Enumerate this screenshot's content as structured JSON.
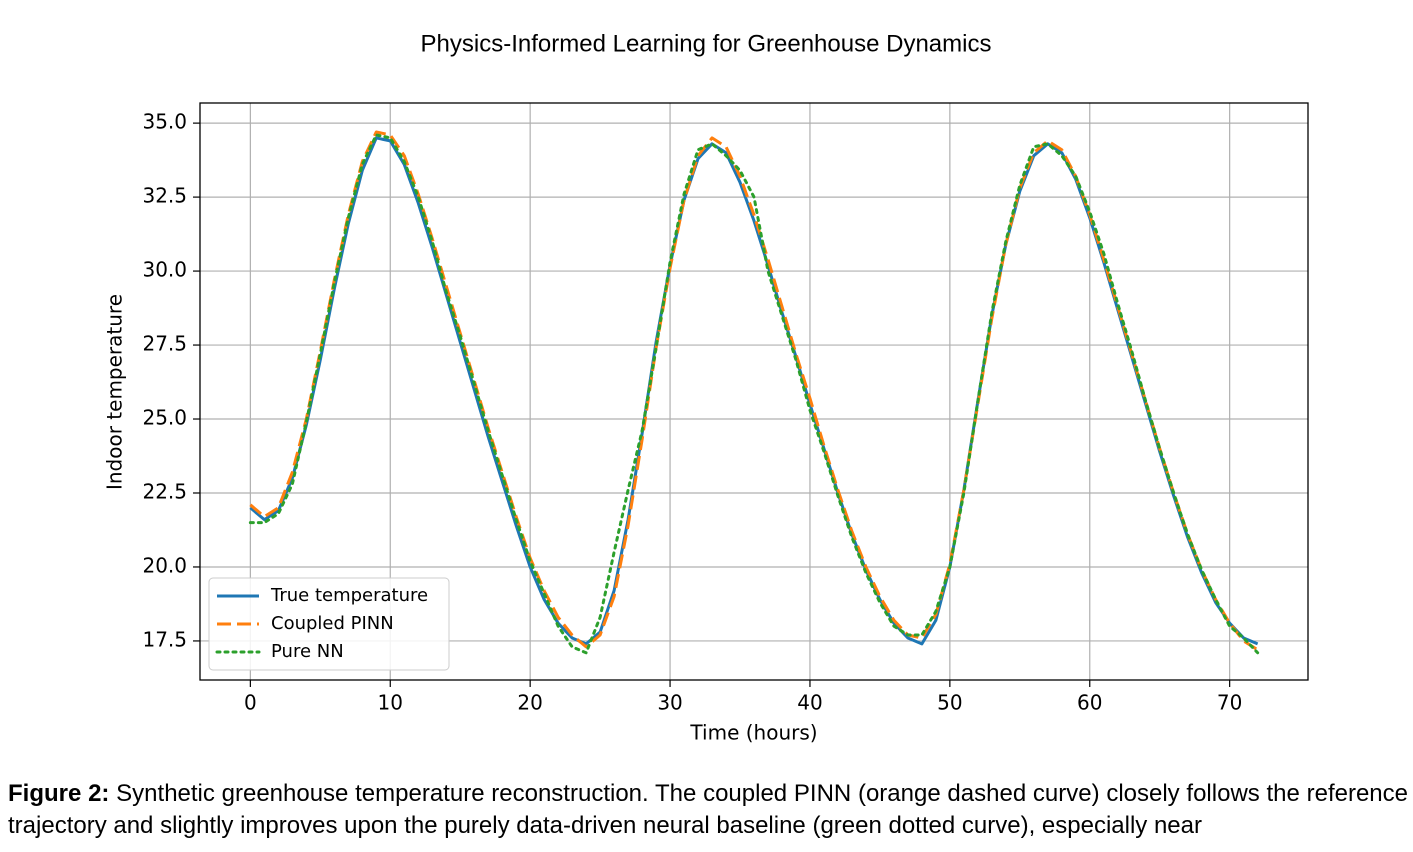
{
  "chart_data": {
    "type": "line",
    "title": "Physics-Informed Learning for Greenhouse Dynamics",
    "xlabel": "Time (hours)",
    "ylabel": "Indoor temperature",
    "x": [
      0,
      1,
      2,
      3,
      4,
      5,
      6,
      7,
      8,
      9,
      10,
      11,
      12,
      13,
      14,
      15,
      16,
      17,
      18,
      19,
      20,
      21,
      22,
      23,
      24,
      25,
      26,
      27,
      28,
      29,
      30,
      31,
      32,
      33,
      34,
      35,
      36,
      37,
      38,
      39,
      40,
      41,
      42,
      43,
      44,
      45,
      46,
      47,
      48,
      49,
      50,
      51,
      52,
      53,
      54,
      55,
      56,
      57,
      58,
      59,
      60,
      61,
      62,
      63,
      64,
      65,
      66,
      67,
      68,
      69,
      70,
      71,
      72
    ],
    "series": [
      {
        "name": "True temperature",
        "color": "#1f77b4",
        "linestyle": "solid",
        "values": [
          22.0,
          21.6,
          21.9,
          23.0,
          24.8,
          27.0,
          29.4,
          31.6,
          33.4,
          34.5,
          34.4,
          33.6,
          32.3,
          30.8,
          29.2,
          27.6,
          26.0,
          24.4,
          22.9,
          21.4,
          20.0,
          18.9,
          18.1,
          17.6,
          17.4,
          17.8,
          19.2,
          21.6,
          24.5,
          27.6,
          30.2,
          32.4,
          33.8,
          34.3,
          34.0,
          33.0,
          31.7,
          30.2,
          28.6,
          27.1,
          25.5,
          24.0,
          22.5,
          21.1,
          19.9,
          18.9,
          18.1,
          17.6,
          17.4,
          18.2,
          20.0,
          22.6,
          25.6,
          28.5,
          30.9,
          32.7,
          33.9,
          34.3,
          34.0,
          33.1,
          31.8,
          30.3,
          28.7,
          27.1,
          25.5,
          23.9,
          22.4,
          21.0,
          19.8,
          18.8,
          18.1,
          17.6,
          17.4
        ]
      },
      {
        "name": "Coupled PINN",
        "color": "#ff7f0e",
        "linestyle": "dashed",
        "values": [
          22.1,
          21.7,
          22.0,
          23.2,
          25.0,
          27.3,
          29.7,
          31.9,
          33.7,
          34.7,
          34.6,
          33.9,
          32.6,
          31.1,
          29.5,
          27.9,
          26.3,
          24.7,
          23.2,
          21.7,
          20.3,
          19.2,
          18.3,
          17.7,
          17.3,
          17.7,
          19.0,
          21.4,
          24.3,
          27.4,
          30.1,
          32.4,
          33.9,
          34.5,
          34.2,
          33.2,
          31.9,
          30.4,
          28.8,
          27.2,
          25.7,
          24.1,
          22.6,
          21.2,
          20.0,
          19.0,
          18.2,
          17.7,
          17.6,
          18.4,
          20.1,
          22.6,
          25.5,
          28.4,
          30.9,
          32.8,
          34.0,
          34.4,
          34.1,
          33.2,
          31.9,
          30.4,
          28.8,
          27.2,
          25.6,
          24.0,
          22.5,
          21.1,
          19.9,
          18.9,
          18.1,
          17.5,
          17.2
        ]
      },
      {
        "name": "Pure NN",
        "color": "#2ca02c",
        "linestyle": "dotted",
        "values": [
          21.5,
          21.5,
          21.8,
          22.8,
          24.9,
          27.2,
          29.6,
          31.8,
          33.6,
          34.6,
          34.5,
          33.7,
          32.5,
          31.0,
          29.3,
          27.8,
          26.2,
          24.6,
          23.1,
          21.6,
          20.2,
          19.1,
          18.0,
          17.3,
          17.1,
          18.3,
          20.5,
          22.6,
          24.6,
          27.4,
          30.3,
          32.6,
          34.1,
          34.3,
          33.9,
          33.4,
          32.5,
          30.0,
          28.5,
          27.0,
          25.3,
          23.9,
          22.4,
          21.0,
          19.8,
          18.8,
          18.0,
          17.7,
          17.7,
          18.5,
          20.0,
          22.5,
          25.6,
          28.6,
          31.0,
          32.9,
          34.2,
          34.3,
          33.9,
          33.2,
          32.0,
          30.6,
          28.9,
          27.3,
          25.6,
          24.0,
          22.5,
          21.1,
          19.9,
          18.9,
          18.0,
          17.6,
          17.1
        ]
      }
    ],
    "xlim": [
      -3.6,
      75.6
    ],
    "xticks": [
      0,
      10,
      20,
      30,
      40,
      50,
      60,
      70
    ],
    "ylim": [
      16.18,
      35.68
    ],
    "yticks": [
      17.5,
      {
        "value": 20,
        "label": "20.0"
      },
      22.5,
      {
        "value": 25,
        "label": "25.0"
      },
      27.5,
      {
        "value": 30,
        "label": "30.0"
      },
      32.5,
      {
        "value": 35,
        "label": "35.0"
      }
    ],
    "grid": true,
    "legend": "lower left"
  },
  "caption": {
    "label": "Figure 2:",
    "text": "Synthetic greenhouse temperature reconstruction. The coupled PINN (orange dashed curve) closely follows the reference trajectory and slightly improves upon the purely data-driven neural baseline (green dotted curve), especially near"
  }
}
